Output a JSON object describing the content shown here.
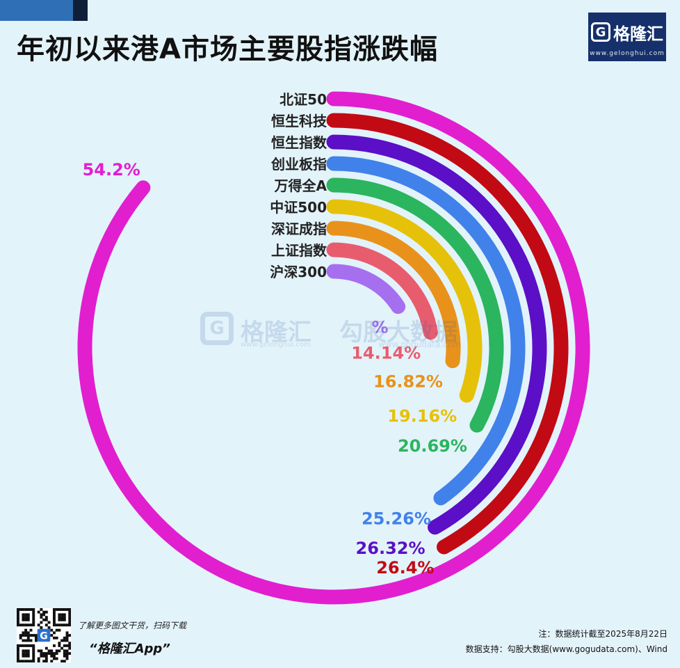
{
  "header": {
    "title": "年初以来港A市场主要股指涨跌幅",
    "logo_text": "格隆汇",
    "logo_url": "www.gelonghui.com"
  },
  "chart_data": {
    "type": "radial-bar",
    "title": "年初以来港A市场主要股指涨跌幅",
    "value_unit": "%",
    "series": [
      {
        "name": "北证50",
        "value": 54.2,
        "label": "54.2%",
        "color": "#e11fcf"
      },
      {
        "name": "恒生科技",
        "value": 26.4,
        "label": "26.4%",
        "color": "#c20a14"
      },
      {
        "name": "恒生指数",
        "value": 26.32,
        "label": "26.32%",
        "color": "#5b0fc7"
      },
      {
        "name": "创业板指",
        "value": 25.26,
        "label": "25.26%",
        "color": "#4181ea"
      },
      {
        "name": "万得全A",
        "value": 20.69,
        "label": "20.69%",
        "color": "#2bb55e"
      },
      {
        "name": "中证500",
        "value": 19.16,
        "label": "19.16%",
        "color": "#e6c10a"
      },
      {
        "name": "深证成指",
        "value": 16.82,
        "label": "16.82%",
        "color": "#e8921c"
      },
      {
        "name": "上证指数",
        "value": 14.14,
        "label": "14.14%",
        "color": "#e85d6e"
      },
      {
        "name": "沪深300",
        "value": 10.02,
        "label": "%",
        "color": "#a56ff0"
      }
    ]
  },
  "watermark": {
    "brand": "格隆汇",
    "brand2": "勾股大数据",
    "url1": "www.gelonghui.com",
    "url2": "www.gogudata.com"
  },
  "footer": {
    "tagline": "了解更多图文干货，扫码下载",
    "app_name": "“格隆汇App”",
    "note": "注：数据统计截至2025年8月22日",
    "source": "数据支持：勾股大数据(www.gogudata.com)、Wind"
  }
}
